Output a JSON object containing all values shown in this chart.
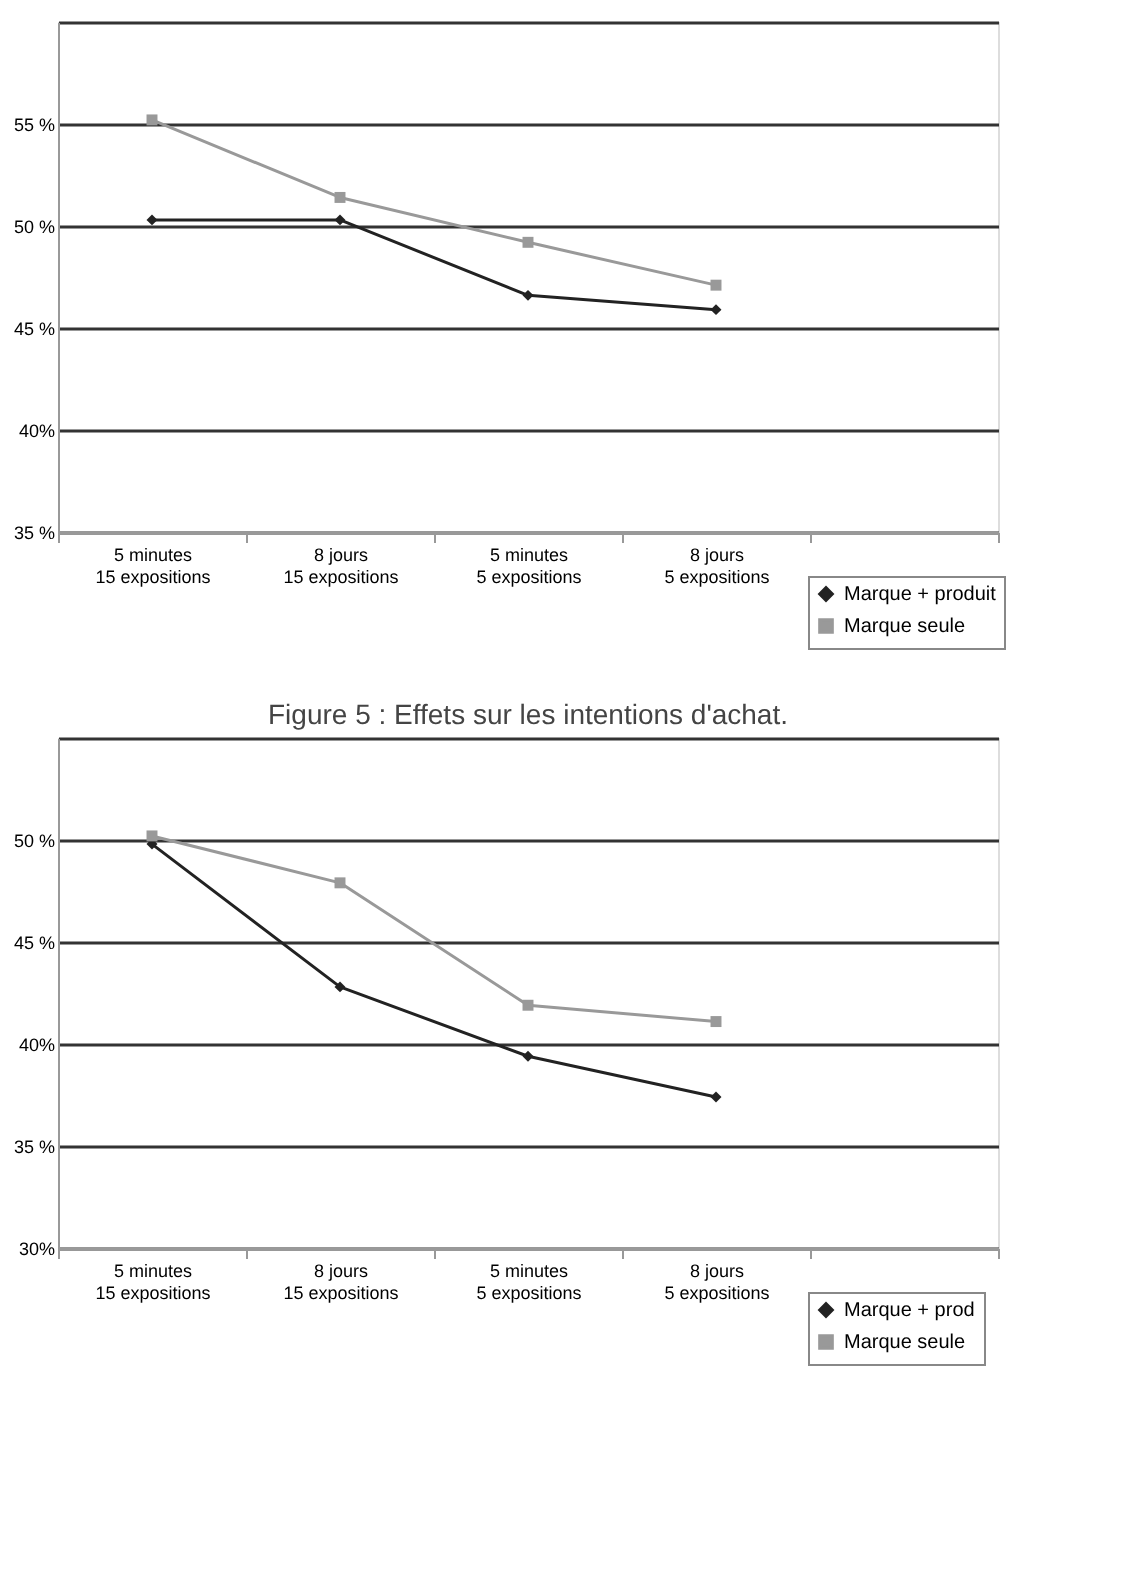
{
  "chart_data": [
    {
      "type": "line",
      "categories": [
        "5 minutes\n15 expositions",
        "8 jours\n15 expositions",
        "5 minutes\n5 expositions",
        "8 jours\n5 expositions",
        null
      ],
      "series": [
        {
          "name": "Marque + produit",
          "color": "#222222",
          "marker": "diamond",
          "values": [
            50.3,
            50.3,
            46.6,
            45.9,
            null
          ]
        },
        {
          "name": "Marque seule",
          "color": "#999999",
          "marker": "square",
          "values": [
            55.2,
            51.4,
            49.2,
            47.1,
            null
          ]
        }
      ],
      "ylim": [
        35,
        60
      ],
      "yticks": [
        {
          "value": 35,
          "label": "35 %"
        },
        {
          "value": 40,
          "label": "40%"
        },
        {
          "value": 45,
          "label": "45 %"
        },
        {
          "value": 50,
          "label": "50 %"
        },
        {
          "value": 55,
          "label": "55 %"
        },
        {
          "value": 60,
          "label": null
        }
      ],
      "grid": "y",
      "legend": "bottom right"
    },
    {
      "type": "line",
      "title": "Figure 5 : Effets sur les intentions d'achat.",
      "categories": [
        "5 minutes\n15 expositions",
        "8 jours\n15 expositions",
        "5 minutes\n5 expositions",
        "8 jours\n5 expositions",
        null
      ],
      "series": [
        {
          "name": "Marque + prod",
          "color": "#222222",
          "marker": "diamond",
          "values": [
            49.8,
            42.8,
            39.4,
            37.4,
            null
          ]
        },
        {
          "name": "Marque seule",
          "color": "#999999",
          "marker": "square",
          "values": [
            50.2,
            47.9,
            41.9,
            41.1,
            null
          ]
        }
      ],
      "ylim": [
        30,
        55
      ],
      "yticks": [
        {
          "value": 30,
          "label": "30%"
        },
        {
          "value": 35,
          "label": "35 %"
        },
        {
          "value": 40,
          "label": "40%"
        },
        {
          "value": 45,
          "label": "45 %"
        },
        {
          "value": 50,
          "label": "50 %"
        },
        {
          "value": 55,
          "label": null
        }
      ],
      "grid": "y",
      "legend": "bottom right"
    }
  ]
}
